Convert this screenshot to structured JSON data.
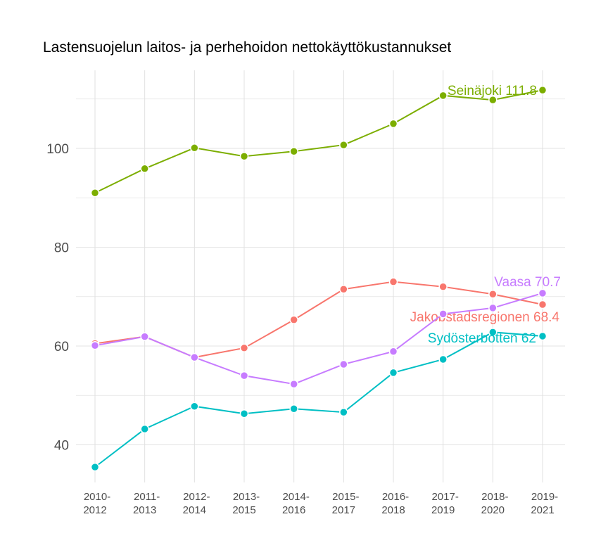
{
  "chart_data": {
    "type": "line",
    "title": "Lastensuojelun laitos- ja perhehoidon nettokäyttökustannukset",
    "xlabel": "",
    "ylabel": "",
    "categories": [
      "2010-2012",
      "2011-2013",
      "2012-2014",
      "2013-2015",
      "2014-2016",
      "2015-2017",
      "2016-2018",
      "2017-2019",
      "2018-2020",
      "2019-2021"
    ],
    "yticks": [
      40,
      60,
      80,
      100
    ],
    "ylim": [
      32.5,
      113.5
    ],
    "grid": true,
    "legend": "none (end labels)",
    "series": [
      {
        "name": "Seinäjoki",
        "end_label": "Seinäjoki 111.8",
        "color": "#7CAE00",
        "values": [
          91.0,
          95.9,
          100.1,
          98.4,
          99.4,
          100.7,
          105.0,
          110.7,
          109.8,
          111.8
        ]
      },
      {
        "name": "Jakobstadsregionen",
        "end_label": "Jakobstadsregionen 68.4",
        "color": "#F8766D",
        "values": [
          60.5,
          61.9,
          57.7,
          59.6,
          65.3,
          71.5,
          73.0,
          72.0,
          70.5,
          68.4
        ]
      },
      {
        "name": "Vaasa",
        "end_label": "Vaasa 70.7",
        "color": "#C77CFF",
        "values": [
          60.1,
          61.9,
          57.7,
          54.0,
          52.3,
          56.3,
          58.9,
          66.5,
          67.7,
          70.7
        ]
      },
      {
        "name": "Sydösterbotten",
        "end_label": "Sydösterbotten 62",
        "color": "#00BFC4",
        "values": [
          35.5,
          43.2,
          47.8,
          46.3,
          47.3,
          46.6,
          54.6,
          57.3,
          62.8,
          62.0
        ]
      }
    ]
  }
}
